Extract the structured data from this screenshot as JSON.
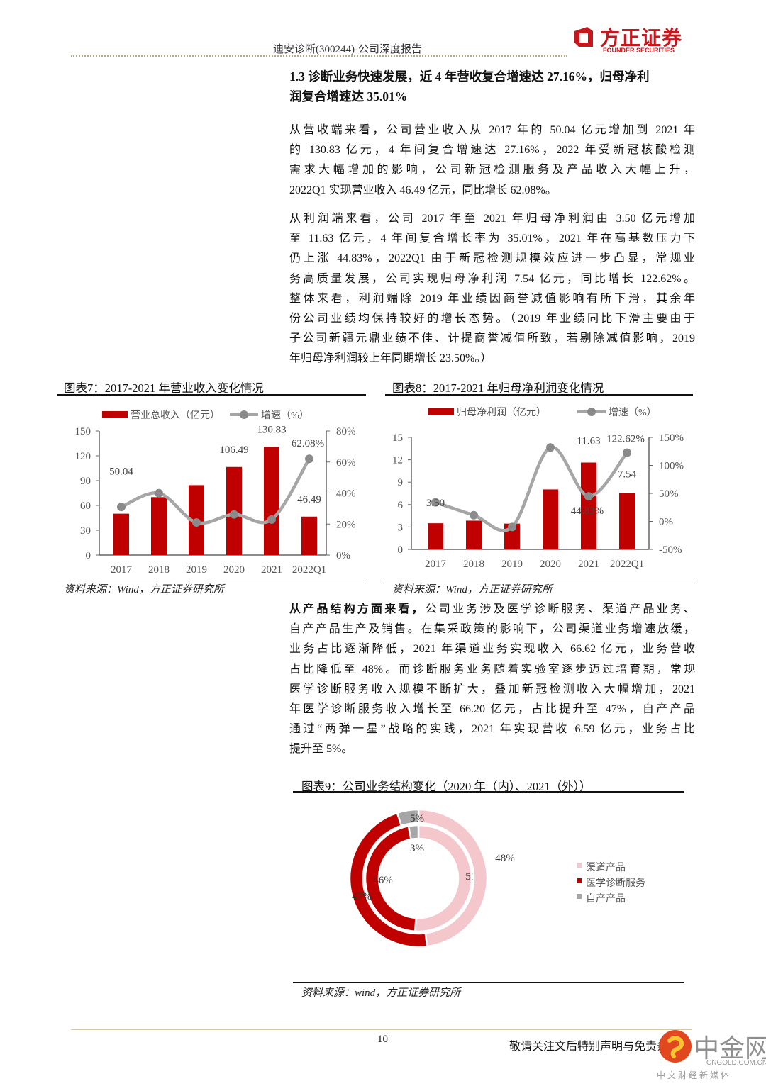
{
  "header": {
    "report_title": "迪安诊断(300244)-公司深度报告",
    "logo_cn": "方正证券",
    "logo_en": "FOUNDER SECURITIES"
  },
  "section": {
    "heading_lines": [
      "1.3 诊断业务快速发展，近 4 年营收复合增速达 27.16%，归母净利",
      "润复合增速达 35.01%"
    ],
    "para1": [
      "从营收端来看，公司营业收入从 2017 年的 50.04 亿元增加到 2021 年",
      "的 130.83 亿元，4 年间复合增速达 27.16%，2022 年受新冠核酸检测",
      "需求大幅增加的影响，公司新冠检测服务及产品收入大幅上升，",
      "2022Q1 实现营业收入 46.49 亿元，同比增长 62.08%。"
    ],
    "para2": [
      "从利润端来看，公司 2017 年至 2021 年归母净利润由 3.50 亿元增加",
      "至 11.63 亿元，4 年间复合增长率为 35.01%，2021 年在高基数压力下",
      "仍上涨 44.83%，2022Q1 由于新冠检测规模效应进一步凸显，常规业",
      "务高质量发展，公司实现归母净利润 7.54 亿元，同比增长 122.62%。",
      "整体来看，利润端除 2019 年业绩因商誉减值影响有所下滑，其余年",
      "份公司业绩均保持较好的增长态势。（2019 年业绩同比下滑主要由于",
      "子公司新疆元鼎业绩不佳、计提商誉减值所致，若剔除减值影响，2019",
      "年归母净利润较上年同期增长 23.50%。）"
    ],
    "para3": [
      "从产品结构方面来看，公司业务涉及医学诊断服务、渠道产品业务、",
      "自产产品生产及销售。在集采政策的影响下，公司渠道业务增速放缓，",
      "业务占比逐渐降低，2021 年渠道业务实现收入 66.62 亿元，业务营收",
      "占比降低至 48%。而诊断服务业务随着实验室逐步迈过培育期，常规",
      "医学诊断服务收入规模不断扩大，叠加新冠检测收入大幅增加，2021",
      "年医学诊断服务收入增长至 66.20 亿元，占比提升至 47%，自产产品",
      "通过“两弹一星”战略的实践，2021 年实现营收 6.59 亿元，业务占比",
      "提升至 5%。"
    ],
    "para3_bold_prefix": "从产品结构方面来看，"
  },
  "chart_data": [
    {
      "type": "bar",
      "title": "图表7：2017-2021 年营业收入变化情况",
      "categories": [
        "2017",
        "2018",
        "2019",
        "2020",
        "2021",
        "2022Q1"
      ],
      "series": [
        {
          "name": "营业总收入（亿元）",
          "type": "bar",
          "axis": "left",
          "values": [
            50.04,
            70.0,
            84.5,
            106.49,
            130.83,
            46.49
          ],
          "color": "#c00000",
          "data_labels": [
            "50.04",
            null,
            null,
            "106.49",
            "130.83",
            "46.49"
          ]
        },
        {
          "name": "增速（%）",
          "type": "line",
          "axis": "right",
          "values": [
            31,
            39.9,
            21,
            26.2,
            22.9,
            62.08
          ],
          "color": "#a6a6a6",
          "data_labels": [
            null,
            null,
            null,
            null,
            null,
            "62.08%"
          ]
        }
      ],
      "y_left": {
        "range": [
          0,
          150
        ],
        "ticks": [
          "0",
          "30",
          "60",
          "90",
          "120",
          "150"
        ]
      },
      "y_right": {
        "range": [
          0,
          80
        ],
        "ticks": [
          "0%",
          "20%",
          "40%",
          "60%",
          "80%"
        ]
      },
      "legend": "top",
      "grid": false,
      "source": "资料来源：Wind，方正证券研究所"
    },
    {
      "type": "bar",
      "title": "图表8：2017-2021 年归母净利润变化情况",
      "categories": [
        "2017",
        "2018",
        "2019",
        "2020",
        "2021",
        "2022Q1"
      ],
      "series": [
        {
          "name": "归母净利润（亿元）",
          "type": "bar",
          "axis": "left",
          "values": [
            3.5,
            3.85,
            3.45,
            8.03,
            11.63,
            7.54
          ],
          "color": "#c00000",
          "data_labels": [
            "3.50",
            null,
            null,
            null,
            "11.63",
            "7.54"
          ]
        },
        {
          "name": "增速（%）",
          "type": "line",
          "axis": "right",
          "values": [
            34,
            11,
            -10,
            132,
            44.83,
            122.62
          ],
          "color": "#a6a6a6",
          "data_labels": [
            null,
            null,
            null,
            null,
            "44.83%",
            "122.62%"
          ]
        }
      ],
      "y_left": {
        "range": [
          0,
          15
        ],
        "ticks": [
          "0",
          "3",
          "6",
          "9",
          "12",
          "15"
        ]
      },
      "y_right": {
        "range": [
          -50,
          150
        ],
        "ticks": [
          "-50%",
          "0%",
          "50%",
          "100%",
          "150%"
        ]
      },
      "legend": "top",
      "grid": false,
      "source": "资料来源：Wind，方正证券研究所"
    },
    {
      "type": "pie",
      "subtype": "double-donut",
      "title": "图表9：公司业务结构变化（2020 年（内）、2021（外））",
      "categories": [
        "渠道产品",
        "医学诊断服务",
        "自产产品"
      ],
      "colors": [
        "#f4c7cc",
        "#c00000",
        "#a6a6a6"
      ],
      "series": [
        {
          "name": "2020",
          "ring": "inner",
          "values": [
            51,
            46,
            3
          ],
          "labels": [
            "51%",
            "46%",
            "3%"
          ]
        },
        {
          "name": "2021",
          "ring": "outer",
          "values": [
            48,
            47,
            5
          ],
          "labels": [
            "48%",
            "47%",
            "5%"
          ]
        }
      ],
      "legend": "right",
      "source": "资料来源：wind，方正证券研究所"
    }
  ],
  "footer": {
    "page_number": "10",
    "disclaimer": "敬请关注文后特别声明与免责条款",
    "watermark_cn": "中金网",
    "watermark_en": "CNGOLD.COM.CN",
    "watermark_sub": "中 文 财 经 新 媒 体"
  }
}
